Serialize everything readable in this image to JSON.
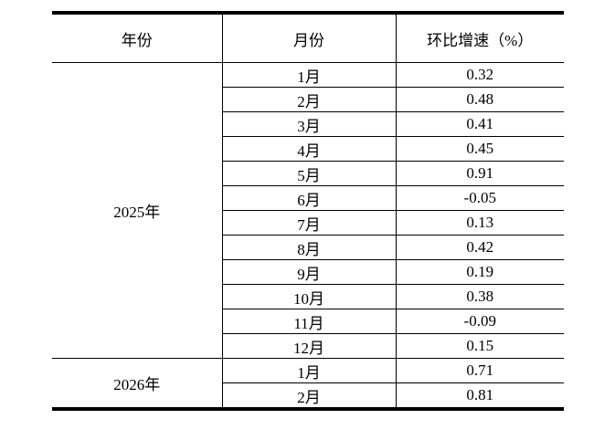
{
  "table": {
    "headers": [
      "年份",
      "月份",
      "环比增速（%）"
    ],
    "groups": [
      {
        "year": "2025年",
        "rows": [
          {
            "month": "1月",
            "value": "0.32"
          },
          {
            "month": "2月",
            "value": "0.48"
          },
          {
            "month": "3月",
            "value": "0.41"
          },
          {
            "month": "4月",
            "value": "0.45"
          },
          {
            "month": "5月",
            "value": "0.91"
          },
          {
            "month": "6月",
            "value": "-0.05"
          },
          {
            "month": "7月",
            "value": "0.13"
          },
          {
            "month": "8月",
            "value": "0.42"
          },
          {
            "month": "9月",
            "value": "0.19"
          },
          {
            "month": "10月",
            "value": "0.38"
          },
          {
            "month": "11月",
            "value": "-0.09"
          },
          {
            "month": "12月",
            "value": "0.15"
          }
        ]
      },
      {
        "year": "2026年",
        "rows": [
          {
            "month": "1月",
            "value": "0.71"
          },
          {
            "month": "2月",
            "value": "0.81"
          }
        ]
      }
    ],
    "colors": {
      "border": "#000000",
      "text": "#000000",
      "background": "#ffffff"
    }
  }
}
